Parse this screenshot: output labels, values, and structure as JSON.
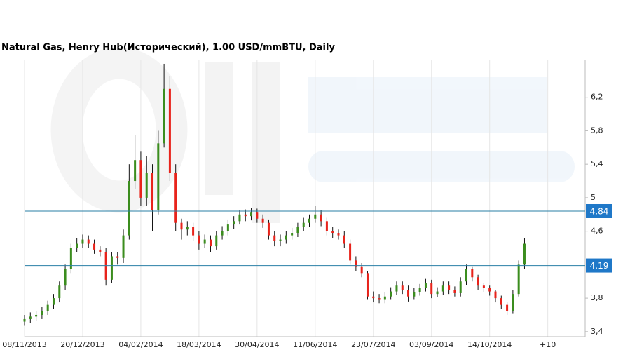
{
  "chart_data": {
    "type": "candlestick",
    "title": "Natural Gas, Henry Hub(Исторический), 1.00 USD/mmBTU, Daily",
    "xlim": [
      0,
      289
    ],
    "ylim": [
      3.34,
      6.65
    ],
    "xticks": [
      {
        "value": 0,
        "label": "08/11/2013"
      },
      {
        "value": 30,
        "label": "20/12/2013"
      },
      {
        "value": 60,
        "label": "04/02/2014"
      },
      {
        "value": 90,
        "label": "18/03/2014"
      },
      {
        "value": 120,
        "label": "30/04/2014"
      },
      {
        "value": 150,
        "label": "11/06/2014"
      },
      {
        "value": 180,
        "label": "23/07/2014"
      },
      {
        "value": 210,
        "label": "03/09/2014"
      },
      {
        "value": 240,
        "label": "14/10/2014"
      },
      {
        "value": 270,
        "label": "+10"
      }
    ],
    "yticks": [
      {
        "value": 3.4,
        "label": "3,4"
      },
      {
        "value": 3.8,
        "label": "3,8"
      },
      {
        "value": 4.6,
        "label": "4,6"
      },
      5,
      {
        "value": 5.4,
        "label": "5,4"
      },
      {
        "value": 5.8,
        "label": "5,8"
      },
      {
        "value": 6.2,
        "label": "6,2"
      }
    ],
    "hlines": [
      4.84,
      4.19
    ],
    "up_color": "#3b8d1e",
    "down_color": "#e8231b",
    "wick_color": "#111111",
    "line_color": "#2a7fa6",
    "label_color": "#1f78c8",
    "x": [
      0,
      3,
      6,
      9,
      12,
      15,
      18,
      21,
      24,
      27,
      30,
      33,
      36,
      39,
      42,
      45,
      48,
      51,
      54,
      57,
      60,
      63,
      66,
      69,
      72,
      75,
      78,
      81,
      84,
      87,
      90,
      93,
      96,
      99,
      102,
      105,
      108,
      111,
      114,
      117,
      120,
      123,
      126,
      129,
      132,
      135,
      138,
      141,
      144,
      147,
      150,
      153,
      156,
      159,
      162,
      165,
      168,
      171,
      174,
      177,
      180,
      183,
      186,
      189,
      192,
      195,
      198,
      201,
      204,
      207,
      210,
      213,
      216,
      219,
      222,
      225,
      228,
      231,
      234,
      237,
      240,
      243,
      246,
      249,
      252,
      255,
      258
    ],
    "open": [
      3.52,
      3.55,
      3.58,
      3.6,
      3.65,
      3.72,
      3.8,
      3.95,
      4.15,
      4.4,
      4.45,
      4.5,
      4.45,
      4.38,
      4.35,
      4.02,
      4.3,
      4.28,
      4.55,
      5.2,
      5.45,
      5.0,
      5.3,
      4.85,
      5.65,
      6.3,
      5.3,
      4.7,
      4.62,
      4.65,
      4.55,
      4.45,
      4.5,
      4.42,
      4.55,
      4.6,
      4.68,
      4.72,
      4.8,
      4.78,
      4.83,
      4.75,
      4.7,
      4.55,
      4.48,
      4.5,
      4.55,
      4.58,
      4.65,
      4.7,
      4.75,
      4.8,
      4.72,
      4.6,
      4.58,
      4.55,
      4.45,
      4.25,
      4.18,
      4.1,
      3.82,
      3.8,
      3.78,
      3.82,
      3.88,
      3.95,
      3.9,
      3.82,
      3.87,
      3.92,
      3.98,
      3.85,
      3.88,
      3.95,
      3.9,
      3.86,
      4.0,
      4.15,
      4.05,
      3.95,
      3.92,
      3.88,
      3.8,
      3.72,
      3.65,
      3.85,
      4.2
    ],
    "high": [
      3.6,
      3.63,
      3.65,
      3.7,
      3.77,
      3.85,
      4.0,
      4.2,
      4.45,
      4.52,
      4.56,
      4.55,
      4.5,
      4.42,
      4.4,
      4.35,
      4.35,
      4.62,
      5.4,
      5.75,
      5.55,
      5.5,
      5.4,
      5.8,
      6.6,
      6.45,
      5.4,
      4.75,
      4.72,
      4.7,
      4.6,
      4.56,
      4.55,
      4.6,
      4.66,
      4.74,
      4.78,
      4.85,
      4.86,
      4.88,
      4.87,
      4.8,
      4.74,
      4.6,
      4.56,
      4.6,
      4.64,
      4.7,
      4.76,
      4.8,
      4.9,
      4.85,
      4.76,
      4.65,
      4.62,
      4.6,
      4.5,
      4.3,
      4.22,
      4.12,
      3.88,
      3.85,
      3.87,
      3.93,
      4.0,
      4.0,
      3.95,
      3.92,
      3.97,
      4.03,
      4.02,
      3.93,
      4.0,
      4.0,
      3.94,
      4.05,
      4.2,
      4.18,
      4.08,
      3.98,
      3.95,
      3.9,
      3.83,
      3.75,
      3.9,
      4.25,
      4.52
    ],
    "low": [
      3.47,
      3.5,
      3.53,
      3.55,
      3.6,
      3.67,
      3.75,
      3.9,
      4.1,
      4.35,
      4.4,
      4.4,
      4.33,
      4.3,
      3.95,
      3.98,
      4.2,
      4.22,
      4.5,
      5.1,
      4.9,
      4.9,
      4.6,
      4.8,
      5.6,
      5.2,
      4.6,
      4.5,
      4.55,
      4.48,
      4.38,
      4.4,
      4.35,
      4.38,
      4.5,
      4.55,
      4.63,
      4.68,
      4.72,
      4.73,
      4.7,
      4.64,
      4.5,
      4.42,
      4.42,
      4.45,
      4.5,
      4.53,
      4.6,
      4.65,
      4.7,
      4.66,
      4.55,
      4.52,
      4.5,
      4.4,
      4.2,
      4.12,
      4.05,
      3.78,
      3.75,
      3.74,
      3.74,
      3.78,
      3.84,
      3.85,
      3.76,
      3.78,
      3.83,
      3.88,
      3.8,
      3.81,
      3.84,
      3.85,
      3.82,
      3.82,
      3.96,
      4.0,
      3.9,
      3.87,
      3.83,
      3.75,
      3.67,
      3.6,
      3.62,
      3.82,
      4.15
    ],
    "close": [
      3.55,
      3.58,
      3.6,
      3.65,
      3.72,
      3.8,
      3.95,
      4.15,
      4.4,
      4.45,
      4.5,
      4.45,
      4.38,
      4.35,
      4.02,
      4.3,
      4.28,
      4.55,
      5.2,
      5.45,
      5.0,
      5.3,
      4.85,
      5.65,
      6.3,
      5.3,
      4.7,
      4.62,
      4.65,
      4.55,
      4.45,
      4.5,
      4.42,
      4.55,
      4.6,
      4.68,
      4.72,
      4.8,
      4.78,
      4.83,
      4.75,
      4.7,
      4.55,
      4.48,
      4.5,
      4.55,
      4.58,
      4.65,
      4.7,
      4.75,
      4.8,
      4.72,
      4.6,
      4.58,
      4.55,
      4.45,
      4.25,
      4.18,
      4.1,
      3.82,
      3.8,
      3.78,
      3.82,
      3.88,
      3.95,
      3.9,
      3.82,
      3.87,
      3.92,
      3.98,
      3.85,
      3.88,
      3.95,
      3.9,
      3.86,
      4.0,
      4.15,
      4.05,
      3.95,
      3.92,
      3.88,
      3.8,
      3.72,
      3.65,
      3.85,
      4.2,
      4.45
    ]
  }
}
